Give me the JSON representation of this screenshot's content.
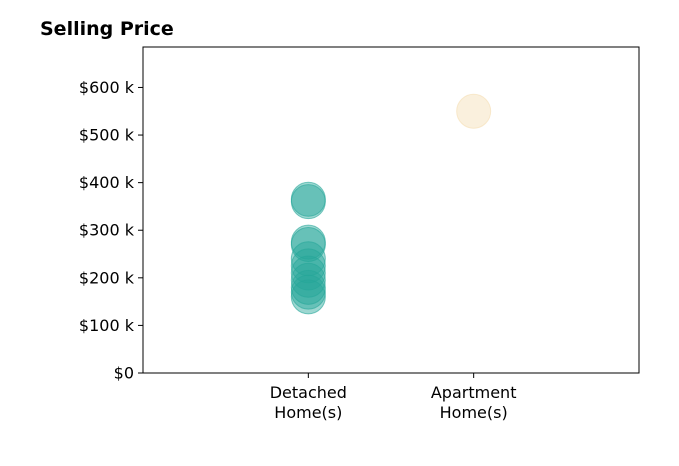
{
  "chart_data": {
    "type": "scatter",
    "title": "Selling Price",
    "xlabel": "",
    "ylabel": "",
    "categories": [
      {
        "lines": [
          "Detached",
          "Home(s)"
        ],
        "color": "#26a69a"
      },
      {
        "lines": [
          "Apartment",
          "Home(s)"
        ],
        "color": "#f5deb3"
      }
    ],
    "x_range": [
      -1,
      2
    ],
    "ylim": [
      0,
      685000
    ],
    "y_ticks": [
      {
        "value": 0,
        "label": "$0"
      },
      {
        "value": 100000,
        "label": "$100 k"
      },
      {
        "value": 200000,
        "label": "$200 k"
      },
      {
        "value": 300000,
        "label": "$300 k"
      },
      {
        "value": 400000,
        "label": "$400 k"
      },
      {
        "value": 500000,
        "label": "$500 k"
      },
      {
        "value": 600000,
        "label": "$600 k"
      }
    ],
    "grid": false,
    "legend": "none",
    "series": [
      {
        "category": 0,
        "values": [
          365000,
          360000,
          275000,
          270000,
          240000,
          225000,
          210000,
          195000,
          180000,
          170000,
          160000
        ]
      },
      {
        "category": 1,
        "values": [
          550000
        ]
      }
    ]
  }
}
